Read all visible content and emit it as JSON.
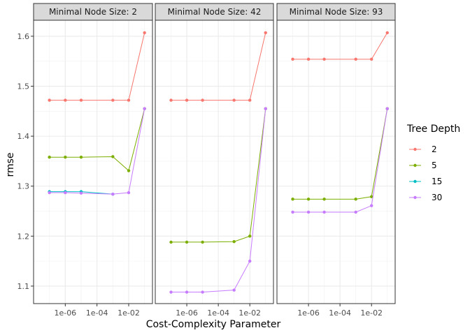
{
  "chart_data": {
    "type": "line",
    "xlabel": "Cost-Complexity Parameter",
    "ylabel": "rmse",
    "x_scale": "log10",
    "x_ticks": [
      1e-06,
      0.0001,
      0.01
    ],
    "x_tick_labels": [
      "1e-06",
      "1e-04",
      "1e-02"
    ],
    "xlim": [
      1e-08,
      0.316
    ],
    "ylim": [
      1.065,
      1.632
    ],
    "y_ticks": [
      1.1,
      1.2,
      1.3,
      1.4,
      1.5,
      1.6
    ],
    "y_tick_labels": [
      "1.1",
      "1.2",
      "1.3",
      "1.4",
      "1.5",
      "1.6"
    ],
    "grid": true,
    "legend_title": "Tree Depth",
    "legend_position": "right",
    "x": [
      1e-07,
      1e-06,
      1e-05,
      0.001,
      0.01,
      0.1
    ],
    "series_styles": [
      {
        "name": "2",
        "color": "#F8766D"
      },
      {
        "name": "5",
        "color": "#7CAE00"
      },
      {
        "name": "15",
        "color": "#00BFC4"
      },
      {
        "name": "30",
        "color": "#C77CFF"
      }
    ],
    "panels": [
      {
        "title": "Minimal Node Size: 2",
        "series": [
          {
            "name": "2",
            "values": [
              1.472,
              1.472,
              1.472,
              1.472,
              1.472,
              1.607
            ]
          },
          {
            "name": "5",
            "values": [
              1.358,
              1.358,
              1.358,
              1.359,
              1.331,
              1.455
            ]
          },
          {
            "name": "15",
            "values": [
              1.289,
              1.289,
              1.289,
              1.284,
              null,
              null
            ]
          },
          {
            "name": "30",
            "values": [
              1.287,
              1.287,
              1.286,
              1.284,
              1.287,
              1.455
            ]
          }
        ]
      },
      {
        "title": "Minimal Node Size: 42",
        "series": [
          {
            "name": "2",
            "values": [
              1.472,
              1.472,
              1.472,
              1.472,
              1.472,
              1.607
            ]
          },
          {
            "name": "5",
            "values": [
              1.188,
              1.188,
              1.188,
              1.189,
              1.2,
              1.455
            ]
          },
          {
            "name": "30",
            "values": [
              1.088,
              1.088,
              1.088,
              1.092,
              1.15,
              1.455
            ]
          }
        ]
      },
      {
        "title": "Minimal Node Size: 93",
        "series": [
          {
            "name": "2",
            "values": [
              1.554,
              1.554,
              1.554,
              1.554,
              1.554,
              1.607
            ]
          },
          {
            "name": "5",
            "values": [
              1.274,
              1.274,
              1.274,
              1.274,
              1.279,
              1.455
            ]
          },
          {
            "name": "30",
            "values": [
              1.248,
              1.248,
              1.248,
              1.248,
              1.261,
              1.455
            ]
          }
        ]
      }
    ]
  }
}
